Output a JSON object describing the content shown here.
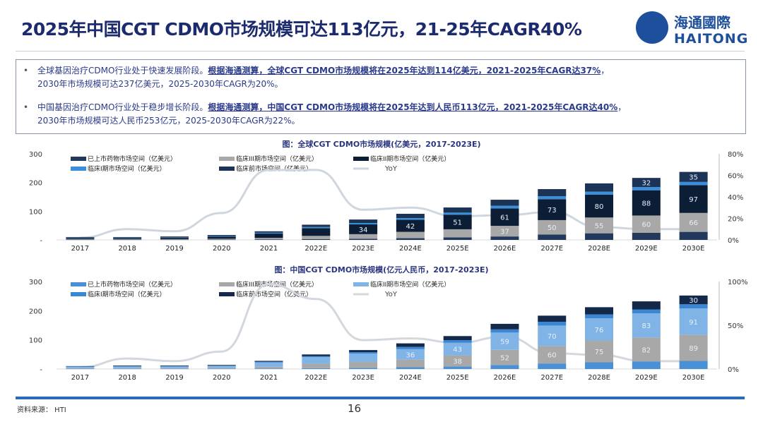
{
  "title": "2025年中国CGT CDMO市场规模可达113亿元，21-25年CAGR40%",
  "logo": {
    "cn": "海通國際",
    "en": "HAITONG"
  },
  "bullets": [
    {
      "plain": "全球基因治疗CDMO行业处于快速发展阶段。",
      "emph": "根据海通测算，全球CGT CDMO市场规模将在2025年达到114亿美元，2021-2025年CAGR达37%",
      "tail": "，",
      "line2": "2030年市场规模可达237亿美元，2025-2030年CAGR为20%。"
    },
    {
      "plain": "中国基因治疗CDMO行业处于稳步增长阶段。",
      "emph": "根据海通测算，中国CGT CDMO市场规模将在2025年达到人民币113亿元，2021-2025年CAGR达40%",
      "tail": "，",
      "line2": "2030年市场规模可达人民币253亿元，2025-2030年CAGR为22%。"
    }
  ],
  "chart_data": [
    {
      "type": "bar",
      "stacked": true,
      "title": "图：全球CGT CDMO市场规模(亿美元，2017-2023E)",
      "categories": [
        "2017",
        "2018",
        "2019",
        "2020",
        "2021",
        "2022E",
        "2023E",
        "2024E",
        "2025E",
        "2026E",
        "2027E",
        "2028E",
        "2029E",
        "2030E"
      ],
      "ylim": [
        0,
        300
      ],
      "yticks": [
        "-",
        "100",
        "200",
        "300"
      ],
      "y2lim": [
        0,
        0.8
      ],
      "y2ticks": [
        "0%",
        "20%",
        "40%",
        "60%",
        "80%"
      ],
      "legend": "top",
      "series": [
        {
          "name": "已上市药物市场空间（亿美元）",
          "color": "#22395c",
          "values": [
            1,
            1,
            1,
            1,
            2,
            3,
            4,
            6,
            9,
            12,
            19,
            23,
            25,
            28
          ]
        },
        {
          "name": "临床III期市场空间（亿美元）",
          "color": "#a8a8a8",
          "values": [
            2,
            2,
            2,
            3,
            5,
            11,
            16,
            22,
            28,
            37,
            50,
            55,
            60,
            66
          ]
        },
        {
          "name": "临床II期市场空间（亿美元）",
          "color": "#0c1d36",
          "values": [
            4,
            4,
            5,
            7,
            15,
            27,
            34,
            42,
            51,
            61,
            73,
            80,
            88,
            97
          ]
        },
        {
          "name": "临床I期市场空间（亿美元）",
          "color": "#3a8fdc",
          "values": [
            1,
            1,
            1,
            2,
            3,
            4,
            5,
            6,
            7,
            9,
            10,
            10,
            11,
            11
          ]
        },
        {
          "name": "临床前市场空间（亿美元）",
          "color": "#1b3354",
          "values": [
            2,
            2,
            3,
            4,
            5,
            8,
            12,
            15,
            18,
            21,
            25,
            29,
            32,
            35
          ]
        }
      ],
      "line": {
        "name": "YoY",
        "color": "#cfd6de",
        "values": [
          0.02,
          0.1,
          0.08,
          0.25,
          0.65,
          0.65,
          0.28,
          0.3,
          0.22,
          0.23,
          0.26,
          0.12,
          0.1,
          0.1
        ]
      }
    },
    {
      "type": "bar",
      "stacked": true,
      "title": "图：中国CGT CDMO市场规模(亿元人民币，2017-2023E)",
      "categories": [
        "2017",
        "2018",
        "2019",
        "2020",
        "2021",
        "2022E",
        "2023E",
        "2024E",
        "2025E",
        "2026E",
        "2027E",
        "2028E",
        "2029E",
        "2030E"
      ],
      "ylim": [
        0,
        300
      ],
      "yticks": [
        "-",
        "100",
        "200",
        "300"
      ],
      "y2lim": [
        0,
        1
      ],
      "y2ticks": [
        "0%",
        "50%",
        "100%"
      ],
      "legend": "top",
      "series": [
        {
          "name": "已上市药物市场空间（亿美元）",
          "color": "#4a90d6",
          "values": [
            1,
            1,
            1,
            1,
            2,
            3,
            4,
            6,
            9,
            14,
            19,
            23,
            26,
            28
          ]
        },
        {
          "name": "临床III期市场空间（亿美元）",
          "color": "#a8a8a8",
          "values": [
            2,
            2,
            2,
            3,
            6,
            15,
            20,
            26,
            38,
            52,
            60,
            75,
            82,
            89
          ]
        },
        {
          "name": "临床II期市场空间（亿美元）",
          "color": "#80b4e6",
          "values": [
            5,
            6,
            6,
            7,
            15,
            23,
            29,
            36,
            43,
            59,
            70,
            76,
            83,
            91
          ]
        },
        {
          "name": "临床I期市场空间（亿美元）",
          "color": "#3b86d2",
          "values": [
            1,
            1,
            1,
            1,
            2,
            3,
            5,
            8,
            9,
            11,
            13,
            13,
            13,
            14
          ]
        },
        {
          "name": "临床前市场空间（亿美元）",
          "color": "#14294a",
          "values": [
            1,
            2,
            2,
            2,
            3,
            6,
            7,
            12,
            14,
            19,
            21,
            25,
            28,
            30
          ]
        }
      ],
      "line": {
        "name": "YoY",
        "color": "#d3d8de",
        "values": [
          0.02,
          0.12,
          0.09,
          0.2,
          0.97,
          0.8,
          0.33,
          0.35,
          0.3,
          0.37,
          0.18,
          0.16,
          0.09,
          0.09
        ]
      }
    }
  ],
  "footer": {
    "source": "资料来源： HTI",
    "page": "16"
  }
}
